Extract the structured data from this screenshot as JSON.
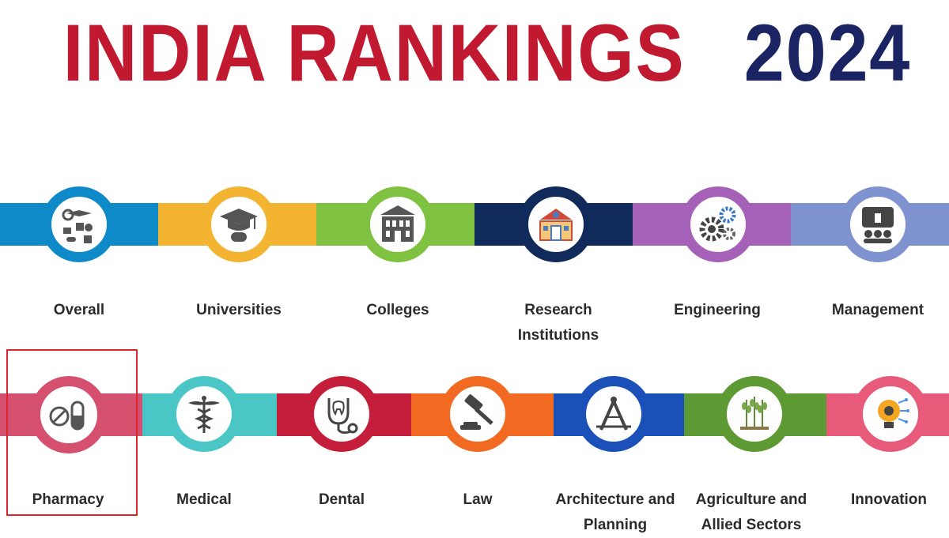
{
  "title": {
    "part1": "INDIA RANKINGS",
    "part2": "2024"
  },
  "categories_row1": [
    {
      "label": "Overall",
      "icon": "overall-icon",
      "color": "#0e8ac8"
    },
    {
      "label": "Universities",
      "icon": "graduation-cap-icon",
      "color": "#f2b431"
    },
    {
      "label": "Colleges",
      "icon": "building-icon",
      "color": "#7fc241"
    },
    {
      "label": "Research Institutions",
      "icon": "lab-building-icon",
      "color": "#102a5c"
    },
    {
      "label": "Engineering",
      "icon": "gears-icon",
      "color": "#a560b8"
    },
    {
      "label": "Management",
      "icon": "presentation-icon",
      "color": "#7f93d0"
    }
  ],
  "categories_row2": [
    {
      "label": "Pharmacy",
      "icon": "pills-icon",
      "color": "#d5506e"
    },
    {
      "label": "Medical",
      "icon": "caduceus-icon",
      "color": "#4bc6c6"
    },
    {
      "label": "Dental",
      "icon": "stethoscope-tooth-icon",
      "color": "#c41e3a"
    },
    {
      "label": "Law",
      "icon": "gavel-icon",
      "color": "#f26a22"
    },
    {
      "label": "Architecture and Planning",
      "icon": "compass-ruler-icon",
      "color": "#1a50b8"
    },
    {
      "label": "Agriculture and Allied Sectors",
      "icon": "wheat-icon",
      "color": "#5e9a34"
    },
    {
      "label": "Innovation",
      "icon": "lightbulb-icon",
      "color": "#e85a7a"
    }
  ]
}
